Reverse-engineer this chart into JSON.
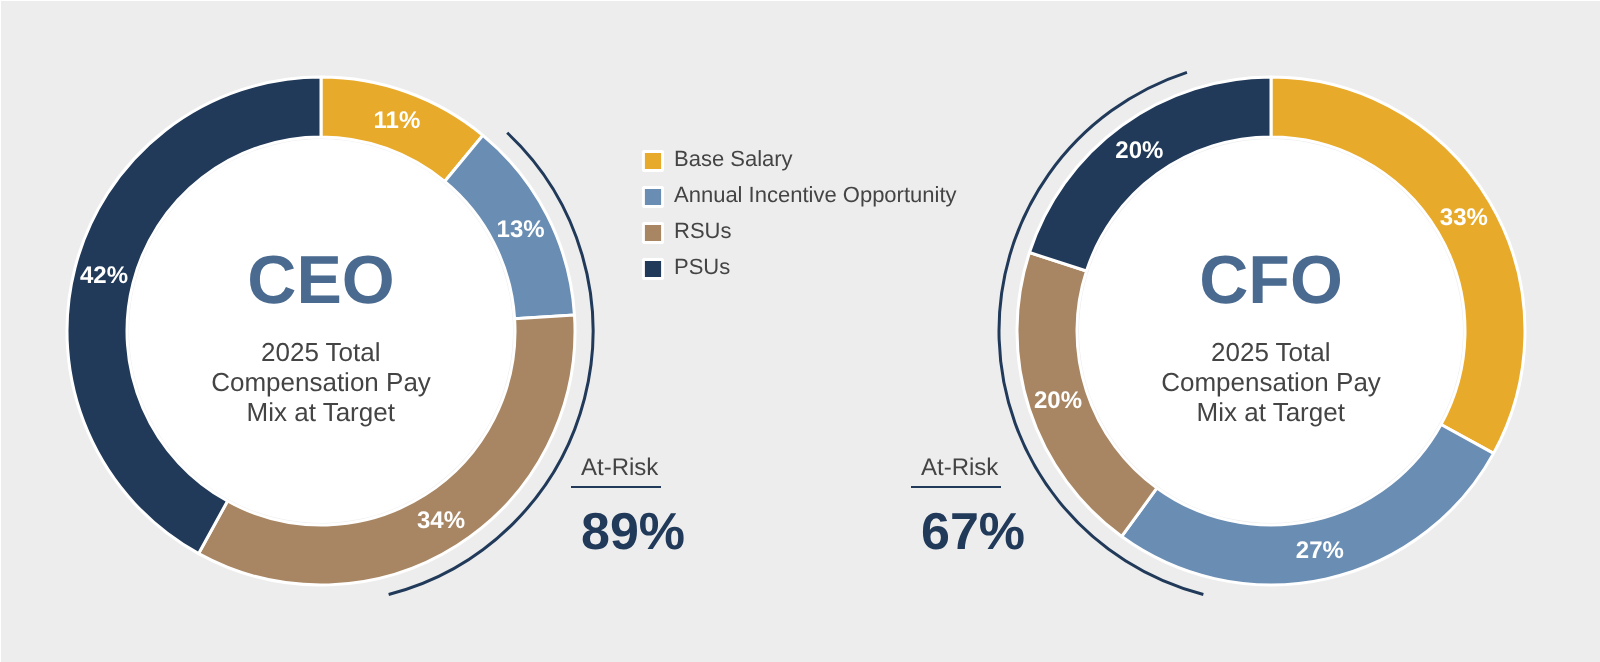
{
  "chart_data": [
    {
      "type": "donut",
      "title": "CEO",
      "subtitle": "2025 Total Compensation Pay Mix at Target",
      "categories": [
        "Base Salary",
        "Annual Incentive Opportunity",
        "RSUs",
        "PSUs"
      ],
      "values": [
        11,
        13,
        34,
        42
      ],
      "colors": [
        "#e8aa2a",
        "#6a8db3",
        "#a88663",
        "#213a5a"
      ],
      "value_labels": [
        "11%",
        "13%",
        "34%",
        "42%"
      ],
      "legend": "right",
      "annotations": [
        "At-Risk",
        "89%"
      ]
    },
    {
      "type": "donut",
      "title": "CFO",
      "subtitle": "2025 Total Compensation Pay Mix at Target",
      "categories": [
        null,
        null,
        null,
        null
      ],
      "values": [
        33,
        27,
        20,
        20
      ],
      "colors": [
        "#e8aa2a",
        "#6a8db3",
        "#a88663",
        "#213a5a"
      ],
      "value_labels": [
        "33%",
        "27%",
        "20%",
        "20%"
      ],
      "annotations": [
        "At-Risk",
        "67%"
      ]
    }
  ]
}
